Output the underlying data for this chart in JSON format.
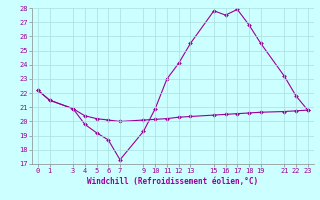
{
  "xlabel": "Windchill (Refroidissement éolien,°C)",
  "x_temperature": [
    0,
    1,
    3,
    4,
    5,
    6,
    7,
    9,
    10,
    11,
    12,
    13,
    15,
    16,
    17,
    18,
    19,
    21,
    22,
    23
  ],
  "y_temperature": [
    22.2,
    21.5,
    20.9,
    19.8,
    19.2,
    18.7,
    17.3,
    19.3,
    20.9,
    23.0,
    24.1,
    25.5,
    27.8,
    27.5,
    27.9,
    26.8,
    25.5,
    23.2,
    21.8,
    20.8
  ],
  "x_windchill": [
    0,
    1,
    3,
    4,
    5,
    6,
    7,
    9,
    10,
    11,
    12,
    13,
    15,
    16,
    17,
    18,
    19,
    21,
    22,
    23
  ],
  "y_windchill": [
    22.2,
    21.5,
    20.9,
    20.4,
    20.2,
    20.1,
    20.0,
    20.1,
    20.15,
    20.2,
    20.3,
    20.35,
    20.45,
    20.5,
    20.55,
    20.6,
    20.65,
    20.7,
    20.75,
    20.8
  ],
  "line_color": "#990099",
  "bg_color": "#ccffff",
  "grid_color": "#aadddd",
  "ylim": [
    17,
    28
  ],
  "xlim": [
    -0.5,
    23.5
  ],
  "yticks": [
    17,
    18,
    19,
    20,
    21,
    22,
    23,
    24,
    25,
    26,
    27,
    28
  ],
  "xticks": [
    0,
    1,
    3,
    4,
    5,
    6,
    7,
    9,
    10,
    11,
    12,
    13,
    15,
    16,
    17,
    18,
    19,
    21,
    22,
    23
  ],
  "tick_fontsize": 5.0,
  "xlabel_fontsize": 5.5
}
